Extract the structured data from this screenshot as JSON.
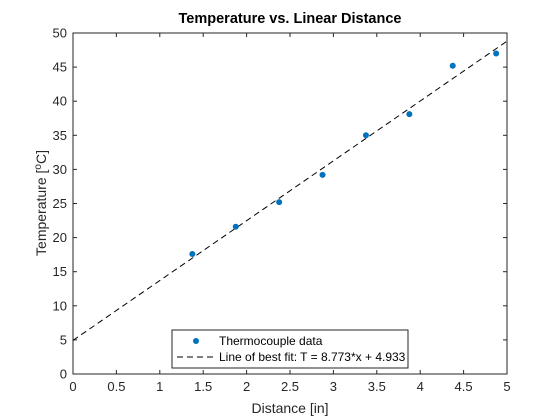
{
  "chart_data": {
    "type": "scatter",
    "title": "Temperature vs. Linear Distance",
    "xlabel": "Distance [in]",
    "ylabel": "Temperature [°C]",
    "xlim": [
      0,
      5
    ],
    "ylim": [
      0,
      50
    ],
    "xticks": [
      0,
      0.5,
      1,
      1.5,
      2,
      2.5,
      3,
      3.5,
      4,
      4.5,
      5
    ],
    "yticks": [
      0,
      5,
      10,
      15,
      20,
      25,
      30,
      35,
      40,
      45,
      50
    ],
    "xtick_labels": [
      "0",
      "0.5",
      "1",
      "1.5",
      "2",
      "2.5",
      "3",
      "3.5",
      "4",
      "4.5",
      "5"
    ],
    "ytick_labels": [
      "0",
      "5",
      "10",
      "15",
      "20",
      "25",
      "30",
      "35",
      "40",
      "45",
      "50"
    ],
    "grid": false,
    "legend_position": "bottom-center",
    "series": [
      {
        "name": "Thermocouple data",
        "kind": "scatter",
        "color": "#0072BD",
        "x": [
          1.375,
          1.875,
          2.375,
          2.875,
          3.375,
          3.875,
          4.375,
          4.875
        ],
        "y": [
          17.6,
          21.6,
          25.2,
          29.2,
          35.0,
          38.1,
          45.2,
          47.0
        ]
      },
      {
        "name": "Line of best fit: T = 8.773*x + 4.933",
        "kind": "line",
        "style": "dashed",
        "color": "#000000",
        "slope": 8.773,
        "intercept": 4.933,
        "x_range": [
          0,
          5
        ]
      }
    ]
  }
}
